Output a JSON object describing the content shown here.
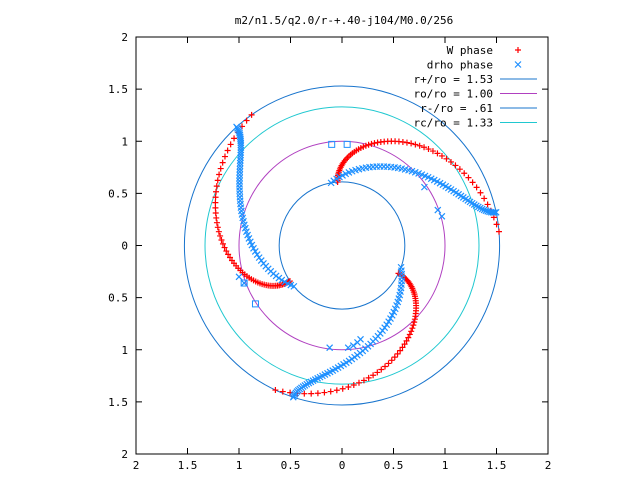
{
  "chart_data": {
    "type": "scatter",
    "title": "m2/n1.5/q2.0/r-+.40-j104/M0.0/256",
    "xlim": [
      -2,
      2
    ],
    "ylim": [
      -2,
      2
    ],
    "x_ticks": [
      -2,
      -1.5,
      -1,
      -0.5,
      0,
      0.5,
      1,
      1.5,
      2
    ],
    "y_ticks": [
      -2,
      -1.5,
      -1,
      -0.5,
      0,
      0.5,
      1,
      1.5,
      2
    ],
    "x_tick_labels": [
      "2",
      "1.5",
      "1",
      "0.5",
      "0",
      "0.5",
      "1",
      "1.5",
      "2"
    ],
    "y_tick_labels": [
      "2",
      "1.5",
      "1",
      "0.5",
      "0",
      "0.5",
      "1",
      "1.5",
      "2"
    ],
    "grid": false,
    "legend_position": "top-right",
    "series": [
      {
        "name": "W phase",
        "marker": "plus",
        "color": "#ff0000",
        "segments": [
          {
            "r0": 0.61,
            "a0": 94,
            "r1": 1.53,
            "a1": 5,
            "n": 60,
            "shape": "concave"
          },
          {
            "r0": 0.61,
            "a0": 214,
            "r1": 1.53,
            "a1": 125,
            "n": 60,
            "shape": "concave"
          },
          {
            "r0": 0.61,
            "a0": 334,
            "r1": 1.53,
            "a1": 245,
            "n": 60,
            "shape": "concave"
          }
        ]
      },
      {
        "name": "drho phase",
        "marker": "cross",
        "color": "#1e90ff",
        "segments": [
          {
            "r0": 0.61,
            "a0": 100,
            "r1": 1.53,
            "a1": 12,
            "n": 60,
            "shape": "convex"
          },
          {
            "r0": 0.61,
            "a0": 220,
            "r1": 1.53,
            "a1": 132,
            "n": 60,
            "shape": "convex"
          },
          {
            "r0": 0.61,
            "a0": 340,
            "r1": 1.53,
            "a1": 252,
            "n": 60,
            "shape": "convex"
          }
        ],
        "extra_points": [
          {
            "x": 0.8,
            "y": 0.56
          },
          {
            "x": 0.93,
            "y": 0.34
          },
          {
            "x": 0.97,
            "y": 0.28
          },
          {
            "x": -0.12,
            "y": -0.98
          },
          {
            "x": 0.06,
            "y": -0.98
          },
          {
            "x": 0.11,
            "y": -0.96
          },
          {
            "x": 0.15,
            "y": -0.93
          },
          {
            "x": 0.18,
            "y": -0.9
          },
          {
            "x": -0.95,
            "y": -0.36
          },
          {
            "x": -1.0,
            "y": -0.3
          }
        ]
      },
      {
        "name": "r+/ro = 1.53",
        "type": "circle",
        "radius": 1.53,
        "color": "#1874cd"
      },
      {
        "name": "ro/ro = 1.00",
        "type": "circle",
        "radius": 1.0,
        "color": "#b040c0"
      },
      {
        "name": "r-/ro = .61",
        "type": "circle",
        "radius": 0.61,
        "color": "#1874cd"
      },
      {
        "name": "rc/ro = 1.33",
        "type": "circle",
        "radius": 1.33,
        "color": "#20c8d0"
      }
    ],
    "square_markers": [
      {
        "x": -0.1,
        "y": 0.97,
        "color": "#1e90ff"
      },
      {
        "x": 0.05,
        "y": 0.97,
        "color": "#1e90ff"
      },
      {
        "x": -0.95,
        "y": -0.36,
        "color": "#1e90ff"
      },
      {
        "x": -0.84,
        "y": -0.56,
        "color": "#1e90ff"
      }
    ]
  }
}
